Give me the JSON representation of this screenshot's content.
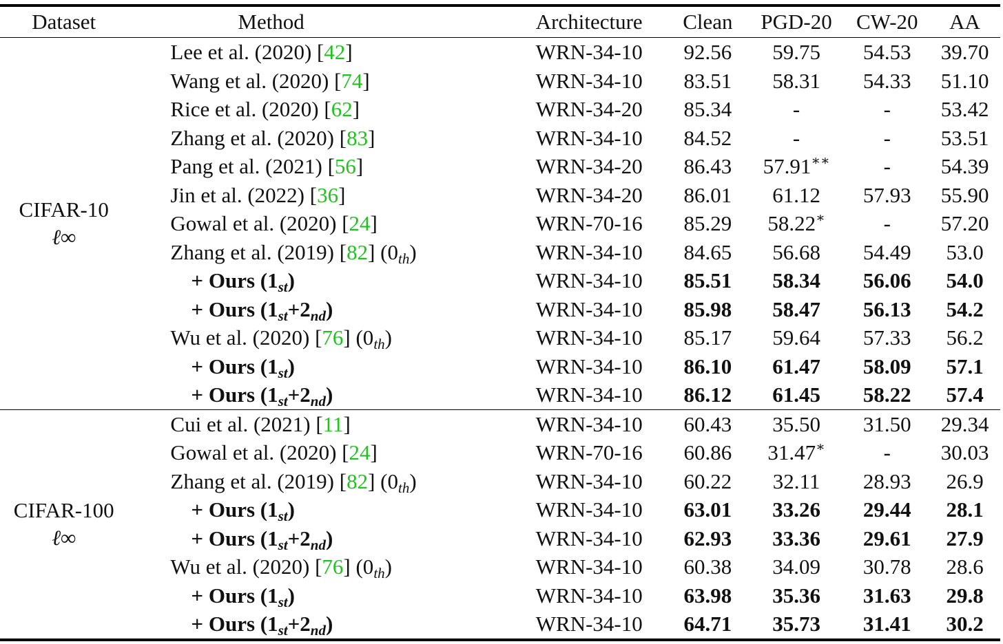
{
  "headers": [
    "Dataset",
    "Method",
    "Architecture",
    "Clean",
    "PGD-20",
    "CW-20",
    "AA"
  ],
  "groups": [
    {
      "dataset": "CIFAR-10",
      "norm": "ℓ∞",
      "rows": [
        {
          "method": "Lee et al. (2020) [",
          "cite": "42",
          "after": "]",
          "arch": "WRN-34-10",
          "clean": "92.56",
          "pgd": "59.75",
          "cw": "54.53",
          "aa": "39.70"
        },
        {
          "method": "Wang et al. (2020) [",
          "cite": "74",
          "after": "]",
          "arch": "WRN-34-10",
          "clean": "83.51",
          "pgd": "58.31",
          "cw": "54.33",
          "aa": "51.10"
        },
        {
          "method": "Rice et al. (2020) [",
          "cite": "62",
          "after": "]",
          "arch": "WRN-34-20",
          "clean": "85.34",
          "pgd": "-",
          "cw": "-",
          "aa": "53.42"
        },
        {
          "method": "Zhang et al. (2020) [",
          "cite": "83",
          "after": "]",
          "arch": "WRN-34-10",
          "clean": "84.52",
          "pgd": "-",
          "cw": "-",
          "aa": "53.51"
        },
        {
          "method": "Pang et al. (2021) [",
          "cite": "56",
          "after": "]",
          "arch": "WRN-34-20",
          "clean": "86.43",
          "pgd": "57.91",
          "pgd_mark": "∗∗",
          "cw": "-",
          "aa": "54.39"
        },
        {
          "method": "Jin et al. (2022) [",
          "cite": "36",
          "after": "]",
          "arch": "WRN-34-20",
          "clean": "86.01",
          "pgd": "61.12",
          "cw": "57.93",
          "aa": "55.90"
        },
        {
          "method": "Gowal et al. (2020) [",
          "cite": "24",
          "after": "]",
          "arch": "WRN-70-16",
          "clean": "85.29",
          "pgd": "58.22",
          "pgd_mark": "∗",
          "cw": "-",
          "aa": "57.20"
        },
        {
          "method": "Zhang et al. (2019) [",
          "cite": "82",
          "after": "] (0",
          "sub": "th",
          "close": ")",
          "arch": "WRN-34-10",
          "clean": "84.65",
          "pgd": "56.68",
          "cw": "54.49",
          "aa": "53.0"
        },
        {
          "ours": "+ Ours (1",
          "s1": "st",
          "close": ")",
          "arch": "WRN-34-10",
          "clean": "85.51",
          "pgd": "58.34",
          "cw": "56.06",
          "aa": "54.0"
        },
        {
          "ours": "+ Ours (1",
          "s1": "st",
          "plus": "+2",
          "s2": "nd",
          "close": ")",
          "arch": "WRN-34-10",
          "clean": "85.98",
          "pgd": "58.47",
          "cw": "56.13",
          "aa": "54.2"
        },
        {
          "method": "Wu et al. (2020) [",
          "cite": "76",
          "after": "] (0",
          "sub": "th",
          "close": ")",
          "arch": "WRN-34-10",
          "clean": "85.17",
          "pgd": "59.64",
          "cw": "57.33",
          "aa": "56.2"
        },
        {
          "ours": "+ Ours (1",
          "s1": "st",
          "close": ")",
          "arch": "WRN-34-10",
          "clean": "86.10",
          "pgd": "61.47",
          "cw": "58.09",
          "aa": "57.1"
        },
        {
          "ours": "+ Ours (1",
          "s1": "st",
          "plus": "+2",
          "s2": "nd",
          "close": ")",
          "arch": "WRN-34-10",
          "clean": "86.12",
          "pgd": "61.45",
          "cw": "58.22",
          "aa": "57.4"
        }
      ]
    },
    {
      "dataset": "CIFAR-100",
      "norm": "ℓ∞",
      "rows": [
        {
          "method": "Cui et al. (2021) [",
          "cite": "11",
          "after": "]",
          "arch": "WRN-34-10",
          "clean": "60.43",
          "pgd": "35.50",
          "cw": "31.50",
          "aa": "29.34"
        },
        {
          "method": "Gowal et al. (2020) [",
          "cite": "24",
          "after": "]",
          "arch": "WRN-70-16",
          "clean": "60.86",
          "pgd": "31.47",
          "pgd_mark": "∗",
          "cw": "-",
          "aa": "30.03"
        },
        {
          "method": "Zhang et al. (2019) [",
          "cite": "82",
          "after": "] (0",
          "sub": "th",
          "close": ")",
          "arch": "WRN-34-10",
          "clean": "60.22",
          "pgd": "32.11",
          "cw": "28.93",
          "aa": "26.9"
        },
        {
          "ours": "+ Ours (1",
          "s1": "st",
          "close": ")",
          "arch": "WRN-34-10",
          "clean": "63.01",
          "pgd": "33.26",
          "cw": "29.44",
          "aa": "28.1"
        },
        {
          "ours": "+ Ours (1",
          "s1": "st",
          "plus": "+2",
          "s2": "nd",
          "close": ")",
          "arch": "WRN-34-10",
          "clean": "62.93",
          "pgd": "33.36",
          "cw": "29.61",
          "aa": "27.9"
        },
        {
          "method": "Wu et al. (2020) [",
          "cite": "76",
          "after": "] (0",
          "sub": "th",
          "close": ")",
          "arch": "WRN-34-10",
          "clean": "60.38",
          "pgd": "34.09",
          "cw": "30.78",
          "aa": "28.6"
        },
        {
          "ours": "+ Ours (1",
          "s1": "st",
          "close": ")",
          "arch": "WRN-34-10",
          "clean": "63.98",
          "pgd": "35.36",
          "cw": "31.63",
          "aa": "29.8"
        },
        {
          "ours": "+ Ours (1",
          "s1": "st",
          "plus": "+2",
          "s2": "nd",
          "close": ")",
          "arch": "WRN-34-10",
          "clean": "64.71",
          "pgd": "35.73",
          "cw": "31.41",
          "aa": "30.2"
        }
      ]
    }
  ]
}
